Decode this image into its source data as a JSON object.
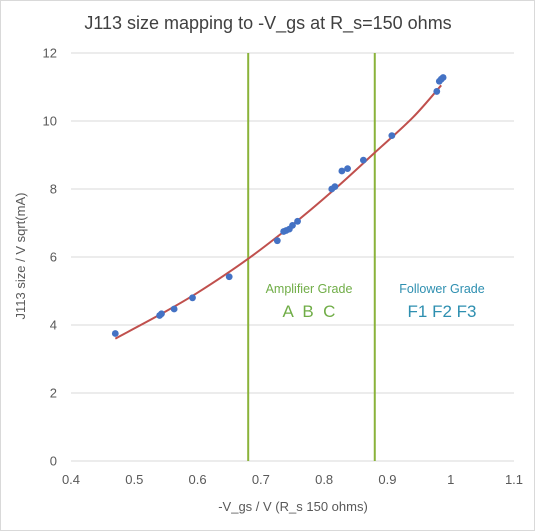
{
  "chart_data": {
    "type": "scatter",
    "title": "J113 size mapping to -V_gs at R_s=150 ohms",
    "xlabel": "-V_gs / V (R_s 150 ohms)",
    "ylabel": "J113 size / V sqrt(mA)",
    "xlim": [
      0.4,
      1.1
    ],
    "ylim": [
      0,
      12
    ],
    "xticks": [
      0.4,
      0.5,
      0.6,
      0.7,
      0.8,
      0.9,
      1,
      1.1
    ],
    "xtick_labels": [
      "0.4",
      "0.5",
      "0.6",
      "0.7",
      "0.8",
      "0.9",
      "1",
      "1.1"
    ],
    "yticks": [
      0,
      2,
      4,
      6,
      8,
      10,
      12
    ],
    "ytick_labels": [
      "0",
      "2",
      "4",
      "6",
      "8",
      "10",
      "12"
    ],
    "grid": "horizontal",
    "legend": "none",
    "points": {
      "color": "#4472c4",
      "x": [
        0.47,
        0.54,
        0.543,
        0.563,
        0.592,
        0.65,
        0.726,
        0.736,
        0.74,
        0.745,
        0.75,
        0.758,
        0.812,
        0.817,
        0.828,
        0.837,
        0.862,
        0.907,
        0.978,
        0.982,
        0.985,
        0.988
      ],
      "y": [
        3.75,
        4.28,
        4.33,
        4.47,
        4.8,
        5.42,
        6.48,
        6.75,
        6.78,
        6.82,
        6.93,
        7.05,
        8.0,
        8.07,
        8.53,
        8.6,
        8.85,
        9.57,
        10.87,
        11.17,
        11.23,
        11.28
      ]
    },
    "fit_line": {
      "color": "#c0504d",
      "x": [
        0.47,
        0.54,
        0.6,
        0.68,
        0.76,
        0.82,
        0.88,
        0.94,
        0.985
      ],
      "y": [
        3.6,
        4.3,
        4.95,
        5.95,
        7.1,
        8.05,
        9.07,
        10.1,
        11.05
      ]
    },
    "vertical_lines": {
      "color": "#8ab33a",
      "x": [
        0.68,
        0.88
      ]
    },
    "annotations": {
      "amplifier_heading": "Amplifier Grade",
      "amplifier_grades": "A  B  C",
      "follower_heading": "Follower Grade",
      "follower_grades": "F1 F2 F3",
      "amplifier_color": "#70ad47",
      "follower_color": "#2e8fb0"
    }
  }
}
